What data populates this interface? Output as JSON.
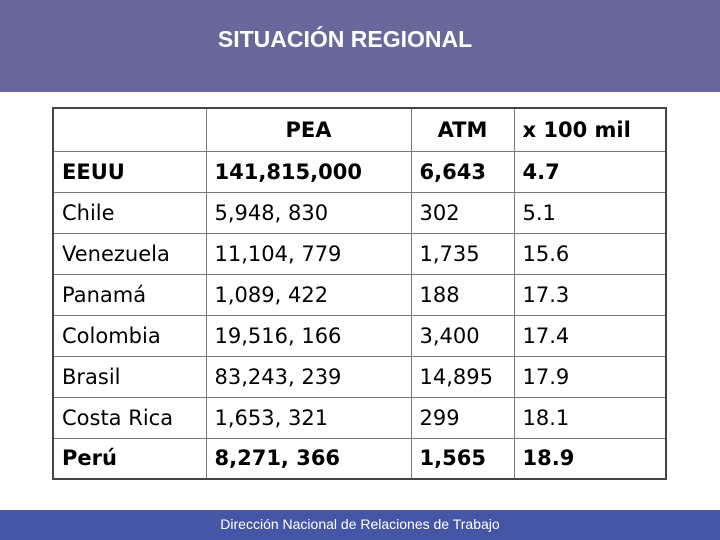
{
  "header": {
    "title": "SITUACIÓN REGIONAL"
  },
  "table": {
    "columns": [
      "PEA",
      "ATM",
      "x 100 mil"
    ],
    "rows": [
      [
        "EEUU",
        "141,815,000",
        "6,643",
        "4.7"
      ],
      [
        "Chile",
        "5,948, 830",
        "302",
        "5.1"
      ],
      [
        "Venezuela",
        "11,104, 779",
        "1,735",
        "15.6"
      ],
      [
        "Panamá",
        "1,089, 422",
        "188",
        "17.3"
      ],
      [
        "Colombia",
        "19,516, 166",
        "3,400",
        "17.4"
      ],
      [
        "Brasil",
        "83,243, 239",
        "14,895",
        "17.9"
      ],
      [
        "Costa Rica",
        "1,653, 321",
        "299",
        "18.1"
      ],
      [
        "Perú",
        "8,271, 366",
        "1,565",
        "18.9"
      ]
    ]
  },
  "footer": {
    "text": "Dirección Nacional de Relaciones de Trabajo"
  }
}
